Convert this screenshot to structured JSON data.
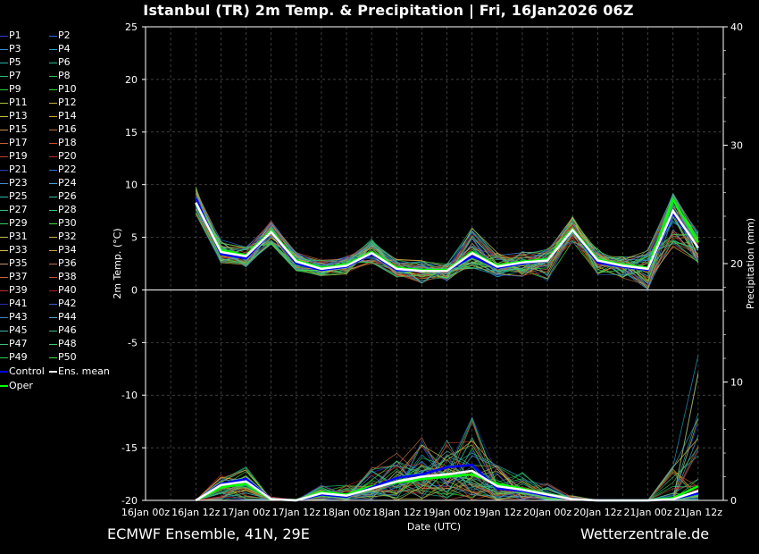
{
  "title": "Istanbul  (TR)  2m Temp. & Precipitation | Fri, 16Jan2026 06Z",
  "footer": {
    "left": "ECMWF Ensemble, 41N, 29E",
    "right": "Wetterzentrale.de"
  },
  "colors": {
    "background": "#000000",
    "control": "#0000ff",
    "ens_mean": "#ffffff",
    "oper": "#00ff00"
  },
  "legend": {
    "members": [
      "P1",
      "P2",
      "P3",
      "P4",
      "P5",
      "P6",
      "P7",
      "P8",
      "P9",
      "P10",
      "P11",
      "P12",
      "P13",
      "P14",
      "P15",
      "P16",
      "P17",
      "P18",
      "P19",
      "P20",
      "P21",
      "P22",
      "P23",
      "P24",
      "P25",
      "P26",
      "P27",
      "P28",
      "P29",
      "P30",
      "P31",
      "P32",
      "P33",
      "P34",
      "P35",
      "P36",
      "P37",
      "P38",
      "P39",
      "P40",
      "P41",
      "P42",
      "P43",
      "P44",
      "P45",
      "P46",
      "P47",
      "P48",
      "P49",
      "P50"
    ],
    "member_colors": [
      "#2a3fd8",
      "#2a6fe0",
      "#3a8fd0",
      "#2aa0c8",
      "#20b0b0",
      "#20b890",
      "#20c070",
      "#30c050",
      "#20d040",
      "#30e030",
      "#b0c040",
      "#c8b040",
      "#d0c030",
      "#d0a830",
      "#c89050",
      "#c07040",
      "#c86030",
      "#c85020",
      "#c04020",
      "#b83020",
      "#2040c0",
      "#3070d8",
      "#4090d0",
      "#40a8d8",
      "#30b8b0",
      "#30c0a0",
      "#30c080",
      "#30c870",
      "#30d060",
      "#40e040",
      "#c0c040",
      "#d0b040",
      "#d8c040",
      "#d0a040",
      "#c89060",
      "#c07050",
      "#c86040",
      "#c05030",
      "#c03030",
      "#b02020",
      "#2030b0",
      "#3060c8",
      "#4080c0",
      "#50a0c8",
      "#40b0a8",
      "#40b890",
      "#40c070",
      "#40c860",
      "#30d050",
      "#40e040"
    ],
    "control": "Control",
    "ens_mean": "Ens. mean",
    "oper": "Oper"
  },
  "chart_data": {
    "type": "line",
    "xlabel": "Date (UTC)",
    "ylabel": "2m Temp. (°C)",
    "y2label": "Precipitation (mm)",
    "x": [
      "16Jan 00z",
      "16Jan 06z",
      "16Jan 12z",
      "16Jan 18z",
      "17Jan 00z",
      "17Jan 06z",
      "17Jan 12z",
      "17Jan 18z",
      "18Jan 00z",
      "18Jan 06z",
      "18Jan 12z",
      "18Jan 18z",
      "19Jan 00z",
      "19Jan 06z",
      "19Jan 12z",
      "19Jan 18z",
      "20Jan 00z",
      "20Jan 06z",
      "20Jan 12z",
      "20Jan 18z",
      "21Jan 00z",
      "21Jan 06z",
      "21Jan 12z",
      "21Jan 18z"
    ],
    "xticks": [
      "16Jan 00z",
      "16Jan 12z",
      "17Jan 00z",
      "17Jan 12z",
      "18Jan 00z",
      "18Jan 12z",
      "19Jan 00z",
      "19Jan 12z",
      "20Jan 00z",
      "20Jan 12z",
      "21Jan 00z",
      "21Jan 12z"
    ],
    "ylim": [
      -20,
      25
    ],
    "yticks": [
      -20,
      -15,
      -10,
      -5,
      0,
      5,
      10,
      15,
      20,
      25
    ],
    "y2lim": [
      0,
      40
    ],
    "y2ticks": [
      0,
      10,
      20,
      30,
      40
    ],
    "grid": true,
    "temperature_start_index": 2,
    "temperature": {
      "ens_mean": [
        8.3,
        3.6,
        3.2,
        5.5,
        2.7,
        2.0,
        2.3,
        3.5,
        2.0,
        1.8,
        1.8,
        3.5,
        2.2,
        2.6,
        2.8,
        5.7,
        2.8,
        2.3,
        2.0,
        7.5,
        4.0
      ],
      "control": [
        8.7,
        3.4,
        3.0,
        5.5,
        2.5,
        1.9,
        2.2,
        3.4,
        1.9,
        1.8,
        1.8,
        3.2,
        2.1,
        2.5,
        2.8,
        5.7,
        2.6,
        2.2,
        1.9,
        7.3,
        4.0
      ],
      "oper": [
        8.2,
        3.8,
        3.3,
        5.6,
        2.8,
        2.1,
        2.4,
        3.6,
        2.1,
        1.9,
        1.9,
        3.6,
        2.3,
        2.7,
        2.9,
        5.8,
        2.9,
        2.4,
        2.1,
        8.6,
        4.5
      ],
      "spread_low": [
        7.2,
        2.5,
        2.2,
        4.1,
        1.8,
        1.3,
        1.5,
        2.5,
        1.2,
        0.6,
        0.8,
        2.0,
        1.2,
        1.2,
        0.8,
        4.5,
        1.3,
        1.1,
        0.0,
        4.0,
        2.5
      ],
      "spread_high": [
        9.8,
        4.8,
        4.1,
        6.6,
        3.6,
        2.9,
        3.2,
        5.0,
        2.9,
        2.8,
        2.5,
        6.0,
        3.6,
        3.8,
        3.9,
        7.0,
        3.9,
        3.2,
        3.9,
        9.3,
        5.5
      ]
    },
    "precipitation_start_index": 2,
    "precipitation": {
      "ens_mean": [
        0.0,
        1.3,
        1.6,
        0.1,
        0.0,
        0.6,
        0.4,
        1.0,
        1.6,
        2.0,
        2.2,
        2.5,
        1.2,
        0.9,
        0.5,
        0.1,
        0.0,
        0.0,
        0.0,
        0.1,
        0.8
      ],
      "control": [
        0.0,
        1.4,
        1.8,
        0.1,
        0.0,
        0.5,
        0.3,
        1.1,
        1.9,
        2.2,
        2.8,
        3.0,
        1.0,
        0.8,
        0.4,
        0.1,
        0.0,
        0.0,
        0.0,
        0.1,
        0.6
      ],
      "oper": [
        0.0,
        1.1,
        1.4,
        0.1,
        0.0,
        0.7,
        0.5,
        1.2,
        1.5,
        1.8,
        2.0,
        2.2,
        1.4,
        1.0,
        0.5,
        0.1,
        0.0,
        0.0,
        0.0,
        0.2,
        1.2
      ],
      "spread_high": [
        0.0,
        2.3,
        2.9,
        0.3,
        0.1,
        1.3,
        1.4,
        3.2,
        4.0,
        5.6,
        5.3,
        7.3,
        4.0,
        2.6,
        1.5,
        0.4,
        0.0,
        0.0,
        0.0,
        3.1,
        12.6
      ]
    }
  }
}
